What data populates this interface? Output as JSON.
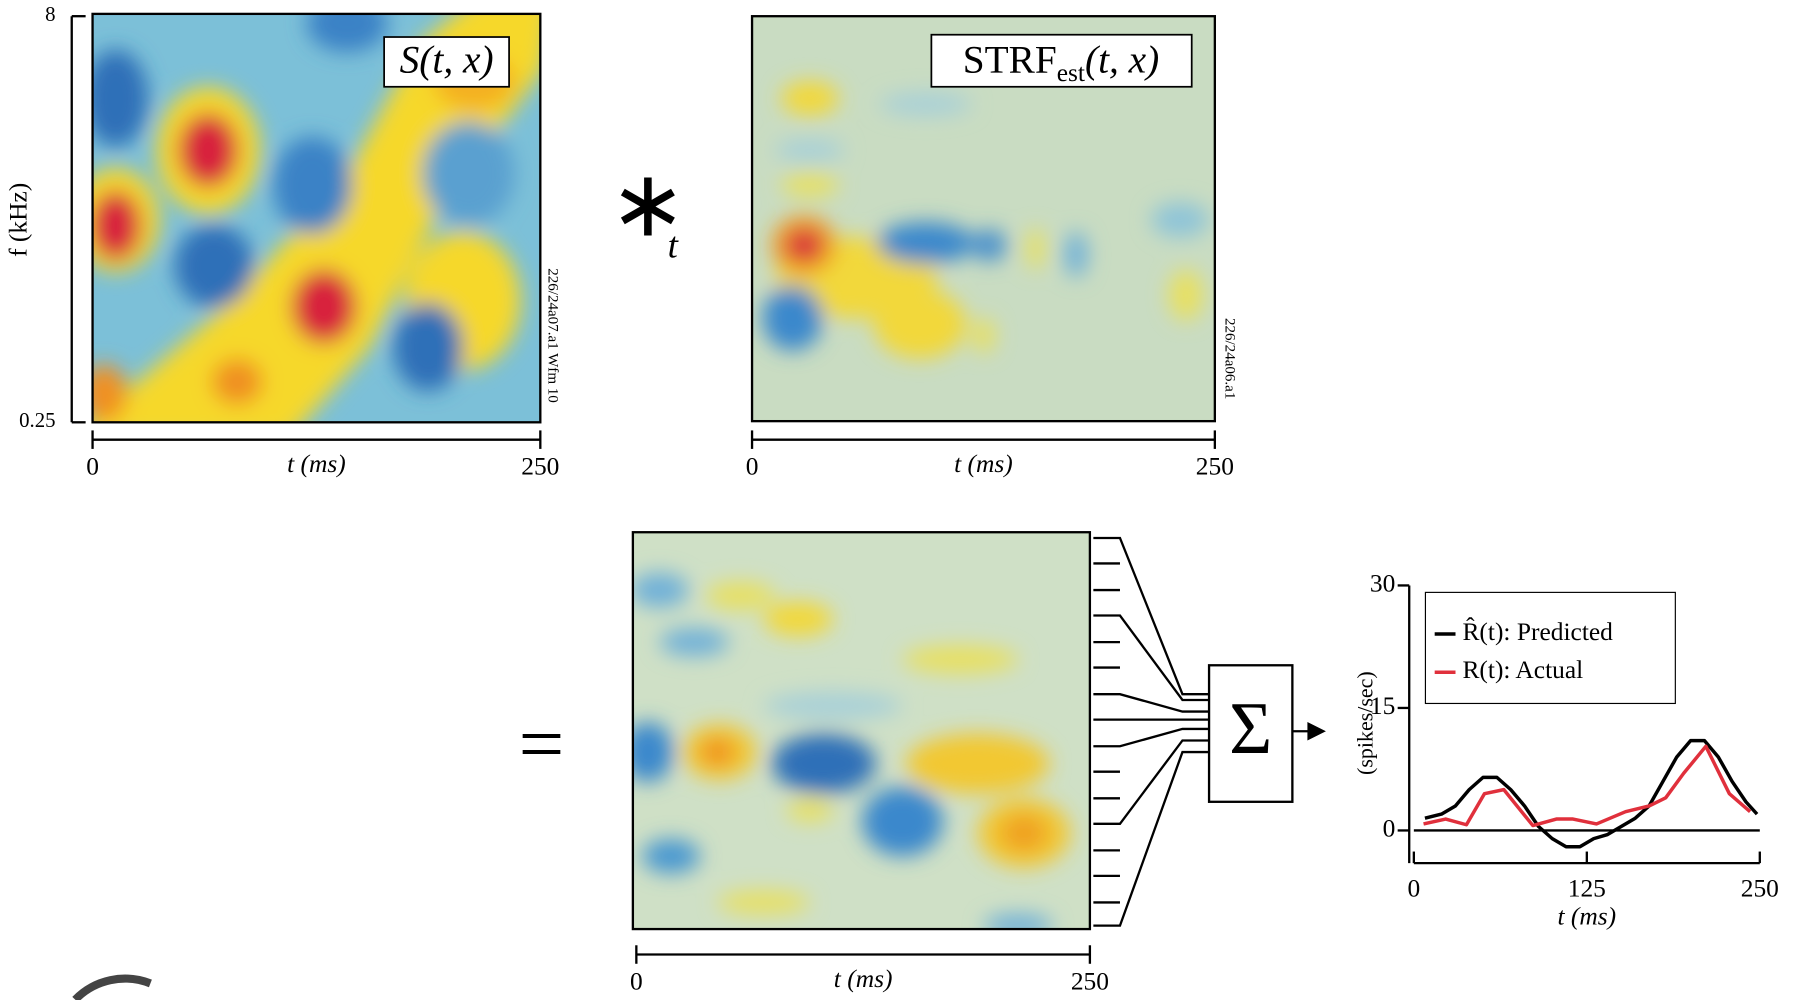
{
  "panels": [
    {
      "label": "S(t, x)",
      "note": "226/24a07.a1 Wfm 10",
      "xlabel": "t (ms)",
      "xlim": [
        0,
        250
      ],
      "xticks": [
        0,
        250
      ],
      "ylabel": "f (kHz)",
      "ylim": [
        0.25,
        8
      ],
      "yticks": [
        0.25,
        8
      ],
      "ylog": true
    },
    {
      "label": {
        "main": "STRF",
        "sub": "est",
        "tail": "(t, x)"
      },
      "note": "226/24a06.a1",
      "xlabel": "t (ms)",
      "xlim": [
        0,
        250
      ],
      "xticks": [
        0,
        250
      ]
    },
    {
      "xlabel": "t (ms)",
      "xlim": [
        0,
        250
      ],
      "xticks": [
        0,
        250
      ]
    }
  ],
  "operators": {
    "convolve": "∗",
    "convolve_sub": "t",
    "equals": "=",
    "sum": "Σ"
  },
  "chart_data": {
    "type": "line",
    "ylabel": "(spikes/sec)",
    "xlabel": "t (ms)",
    "xlim": [
      0,
      250
    ],
    "xticks": [
      0,
      125,
      250
    ],
    "ylim": [
      -4,
      30
    ],
    "yticks": [
      0,
      15,
      30
    ],
    "legend": "upper left",
    "series": [
      {
        "name": "R̂(t): Predicted",
        "color": "#000000",
        "x": [
          8,
          20,
          30,
          40,
          50,
          60,
          70,
          80,
          90,
          100,
          110,
          120,
          130,
          140,
          150,
          160,
          170,
          180,
          190,
          200,
          210,
          220,
          230,
          240,
          248
        ],
        "values": [
          1.5,
          2,
          3,
          5,
          6.5,
          6.5,
          5,
          3,
          0.5,
          -1,
          -2,
          -2,
          -1,
          -0.5,
          0.5,
          1.5,
          3,
          6,
          9,
          11,
          11,
          9,
          6,
          3.5,
          2
        ]
      },
      {
        "name": "R(t): Actual",
        "color": "#e0303c",
        "x": [
          7,
          23,
          38,
          51,
          65,
          86,
          103,
          115,
          132,
          153,
          170,
          182,
          195,
          211,
          228,
          243
        ],
        "values": [
          0.8,
          1.4,
          0.7,
          4.5,
          5,
          0.6,
          1.4,
          1.4,
          0.8,
          2.3,
          3,
          4,
          7,
          10.3,
          4.5,
          2.3
        ]
      }
    ]
  }
}
